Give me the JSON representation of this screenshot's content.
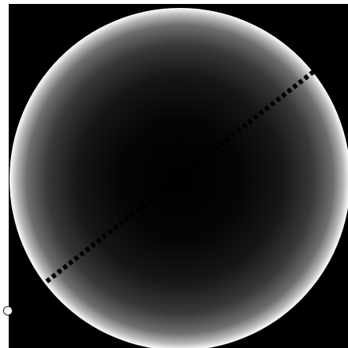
{
  "viewer": {
    "background_color": "#000000",
    "disc": {
      "edge_color": "#ffffff",
      "center_color": "#000000"
    },
    "profile_line": {
      "style": "dotted",
      "color": "#000000"
    }
  },
  "controls": {
    "slider_handle_icon": "circle-handle-icon"
  }
}
